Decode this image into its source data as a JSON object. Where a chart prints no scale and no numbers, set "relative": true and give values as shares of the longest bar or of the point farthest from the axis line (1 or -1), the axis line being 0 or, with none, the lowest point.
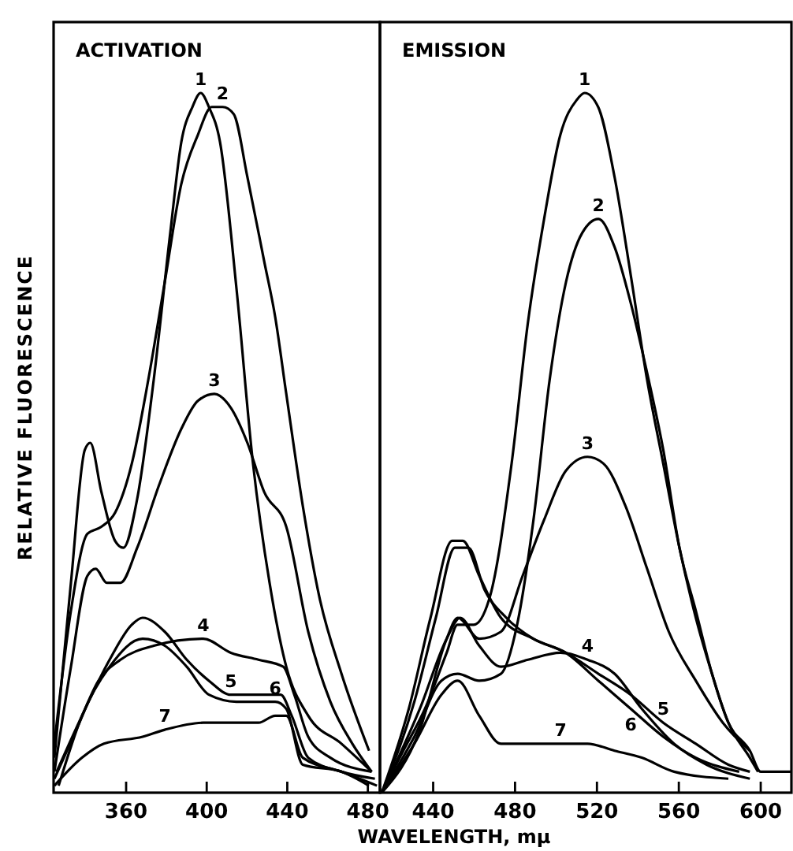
{
  "chart_data": [
    {
      "type": "line",
      "title": "ACTIVATION",
      "ylabel": "RELATIVE FLUORESCENCE",
      "relative": true,
      "xlim": [
        324,
        486
      ],
      "xticks": [
        360,
        400,
        440,
        480
      ],
      "marker": "none",
      "line_style": "solid",
      "grid": false,
      "series": [
        {
          "color": "#000000",
          "x": [
            324.4,
            332.6,
            339.5,
            342.2,
            347.7,
            354.5,
            358.6,
            365.5,
            373.7,
            381.9,
            387.4,
            392.9,
            397,
            401.1,
            406.6,
            414.8,
            423,
            431.2,
            439.5,
            450.4,
            466.9,
            481.9
          ],
          "values": [
            0.05,
            0.3,
            0.49,
            0.5,
            0.43,
            0.36,
            0.35,
            0.42,
            0.59,
            0.8,
            0.93,
            0.98,
            1.0,
            0.98,
            0.93,
            0.72,
            0.47,
            0.3,
            0.18,
            0.11,
            0.07,
            0.03
          ]
        },
        {
          "color": "#000000",
          "x": [
            324.4,
            332.6,
            340.8,
            347.7,
            354.5,
            362.8,
            371,
            379.2,
            387.4,
            395.6,
            402.5,
            407.9,
            413.4,
            420.2,
            428.5,
            434,
            439.5,
            447.7,
            455.9,
            466.9,
            480.6
          ],
          "values": [
            0.07,
            0.26,
            0.37,
            0.38,
            0.4,
            0.47,
            0.59,
            0.73,
            0.87,
            0.94,
            0.98,
            0.98,
            0.97,
            0.88,
            0.76,
            0.68,
            0.57,
            0.41,
            0.28,
            0.17,
            0.06
          ]
        },
        {
          "color": "#000000",
          "x": [
            324.4,
            332.6,
            340.8,
            344.9,
            350.4,
            357.2,
            365.5,
            376.4,
            387.4,
            395.6,
            403.8,
            412,
            420.2,
            428.5,
            439.5,
            450.4,
            461.4,
            472.3,
            481.9
          ],
          "values": [
            0.03,
            0.18,
            0.31,
            0.32,
            0.3,
            0.3,
            0.35,
            0.44,
            0.52,
            0.56,
            0.57,
            0.55,
            0.5,
            0.43,
            0.38,
            0.23,
            0.13,
            0.07,
            0.03
          ]
        },
        {
          "color": "#000000",
          "x": [
            324.4,
            335.3,
            346.3,
            357.2,
            373.7,
            398.3,
            412,
            425.7,
            438,
            443.5,
            450.4,
            461.4,
            481.9
          ],
          "values": [
            0.02,
            0.09,
            0.16,
            0.19,
            0.21,
            0.22,
            0.2,
            0.19,
            0.18,
            0.14,
            0.08,
            0.05,
            0.03
          ]
        },
        {
          "color": "#000000",
          "x": [
            325.5,
            338.1,
            351.8,
            362.8,
            368.2,
            379.2,
            390.1,
            401.1,
            412,
            425.7,
            436.7,
            442.2,
            450.4,
            466.9,
            483.5
          ],
          "values": [
            0.03,
            0.11,
            0.19,
            0.24,
            0.25,
            0.23,
            0.19,
            0.16,
            0.14,
            0.14,
            0.14,
            0.11,
            0.05,
            0.03,
            0.02
          ]
        },
        {
          "color": "#000000",
          "x": [
            326.5,
            338.1,
            351.8,
            368.2,
            379.2,
            390.1,
            401.1,
            414.8,
            434,
            439.5,
            447.7,
            466.9,
            480.5
          ],
          "values": [
            0.01,
            0.11,
            0.18,
            0.22,
            0.21,
            0.18,
            0.14,
            0.13,
            0.13,
            0.12,
            0.04,
            0.03,
            0.01
          ]
        },
        {
          "color": "#000000",
          "x": [
            324.4,
            338.1,
            349,
            368.2,
            379.2,
            398.3,
            412,
            425.7,
            434,
            439.5,
            447.7,
            466.9,
            484.5
          ],
          "values": [
            0.01,
            0.05,
            0.07,
            0.08,
            0.09,
            0.1,
            0.1,
            0.1,
            0.11,
            0.11,
            0.05,
            0.03,
            0.01
          ]
        }
      ],
      "annotations": [
        {
          "text": "1",
          "x": 397,
          "y": 1.0
        },
        {
          "text": "2",
          "x": 407.9,
          "y": 0.98
        },
        {
          "text": "3",
          "x": 403.8,
          "y": 0.57
        },
        {
          "text": "4",
          "x": 398.3,
          "y": 0.22
        },
        {
          "text": "5",
          "x": 412,
          "y": 0.14
        },
        {
          "text": "6",
          "x": 434,
          "y": 0.13
        },
        {
          "text": "7",
          "x": 379.2,
          "y": 0.09
        }
      ]
    },
    {
      "type": "line",
      "title": "EMISSION",
      "xlabel": "WAVELENGTH, mμ",
      "relative": true,
      "xlim": [
        414,
        615
      ],
      "xticks": [
        440,
        480,
        520,
        560,
        600
      ],
      "marker": "none",
      "line_style": "solid",
      "grid": false,
      "series": [
        {
          "color": "#000000",
          "x": [
            414.9,
            425.4,
            436,
            446.6,
            451.9,
            459.8,
            467.7,
            478.3,
            486.2,
            494.2,
            502.1,
            510.1,
            514,
            520.6,
            528.6,
            536.5,
            544.5,
            552.4,
            560.3,
            568.3,
            576.2,
            584.2,
            594.7,
            600,
            614.6
          ],
          "values": [
            0.0,
            0.06,
            0.12,
            0.2,
            0.24,
            0.24,
            0.28,
            0.47,
            0.67,
            0.82,
            0.94,
            0.99,
            1.0,
            0.98,
            0.88,
            0.74,
            0.59,
            0.47,
            0.35,
            0.25,
            0.17,
            0.1,
            0.06,
            0.03,
            0.03
          ]
        },
        {
          "color": "#000000",
          "x": [
            414.9,
            430.8,
            444,
            452,
            462.5,
            473.1,
            481,
            489,
            496.9,
            504.9,
            512.8,
            520.7,
            528.6,
            536.5,
            544.5,
            552.4,
            560.3,
            568.3,
            576.2,
            584.2,
            594.7,
            598.7
          ],
          "values": [
            0.0,
            0.08,
            0.16,
            0.17,
            0.16,
            0.17,
            0.24,
            0.39,
            0.59,
            0.73,
            0.8,
            0.82,
            0.78,
            0.7,
            0.6,
            0.49,
            0.35,
            0.26,
            0.17,
            0.1,
            0.05,
            0.03
          ]
        },
        {
          "color": "#000000",
          "x": [
            414.9,
            433.5,
            446.6,
            452,
            462.5,
            473.1,
            483.7,
            494.2,
            504.8,
            515.4,
            523.3,
            533.9,
            544.5,
            555.1,
            568.3,
            581.5,
            594.7
          ],
          "values": [
            0.0,
            0.09,
            0.22,
            0.25,
            0.22,
            0.23,
            0.31,
            0.39,
            0.46,
            0.48,
            0.47,
            0.41,
            0.32,
            0.23,
            0.16,
            0.1,
            0.06
          ]
        },
        {
          "color": "#000000",
          "x": [
            414.9,
            433.5,
            446.6,
            453.2,
            462.5,
            473.1,
            486.3,
            502.2,
            515.4,
            528.6,
            541.9,
            557.7,
            573.6,
            594.7
          ],
          "values": [
            0.0,
            0.12,
            0.22,
            0.25,
            0.21,
            0.18,
            0.19,
            0.2,
            0.19,
            0.17,
            0.12,
            0.07,
            0.04,
            0.02
          ]
        },
        {
          "color": "#000000",
          "x": [
            414.9,
            428.1,
            438.7,
            449.3,
            454.5,
            462.5,
            473.1,
            488.9,
            504.8,
            520.7,
            536.5,
            552.4,
            568.3,
            584.2,
            594.7
          ],
          "values": [
            0.0,
            0.12,
            0.25,
            0.36,
            0.36,
            0.31,
            0.25,
            0.22,
            0.2,
            0.17,
            0.14,
            0.1,
            0.07,
            0.04,
            0.03
          ]
        },
        {
          "color": "#000000",
          "x": [
            414.9,
            430.8,
            441.3,
            450.6,
            457.2,
            465.1,
            475.7,
            488.9,
            504.8,
            520.7,
            536.5,
            552.4,
            568.3,
            589.5
          ],
          "values": [
            0.0,
            0.13,
            0.25,
            0.35,
            0.35,
            0.29,
            0.25,
            0.22,
            0.2,
            0.16,
            0.12,
            0.08,
            0.05,
            0.03
          ]
        },
        {
          "color": "#000000",
          "x": [
            414.9,
            430.8,
            444,
            452,
            462.5,
            473.1,
            486.3,
            502.2,
            515.4,
            528.6,
            541.9,
            557.7,
            584.2
          ],
          "values": [
            0.0,
            0.07,
            0.14,
            0.16,
            0.11,
            0.07,
            0.07,
            0.07,
            0.07,
            0.06,
            0.05,
            0.03,
            0.02
          ]
        }
      ],
      "annotations": [
        {
          "text": "1",
          "x": 514,
          "y": 1.0
        },
        {
          "text": "2",
          "x": 520.7,
          "y": 0.82
        },
        {
          "text": "3",
          "x": 515.4,
          "y": 0.48
        },
        {
          "text": "4",
          "x": 515.4,
          "y": 0.19
        },
        {
          "text": "5",
          "x": 552.4,
          "y": 0.1
        },
        {
          "text": "6",
          "x": 536.5,
          "y": 0.12
        },
        {
          "text": "7",
          "x": 502.2,
          "y": 0.07
        }
      ]
    }
  ]
}
